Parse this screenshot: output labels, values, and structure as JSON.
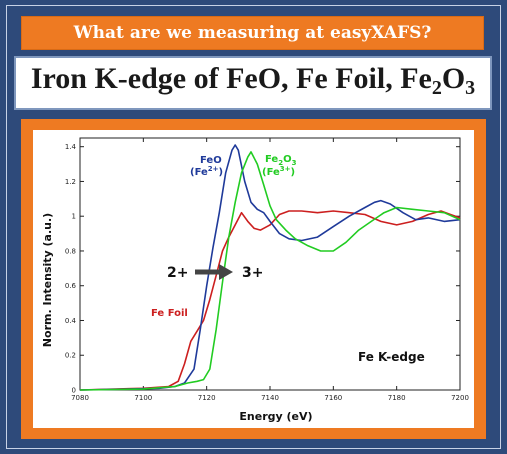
{
  "banner": {
    "text": "What are we measuring at easyXAFS?"
  },
  "title": {
    "prefix": "Iron K-edge of FeO, Fe Foil, Fe",
    "sub1": "2",
    "mid": "O",
    "sub2": "3"
  },
  "chart_data": {
    "type": "line",
    "xlabel": "Energy (eV)",
    "ylabel": "Norm. Intensity (a.u.)",
    "xlim": [
      7080,
      7200
    ],
    "ylim": [
      0,
      1.45
    ],
    "xticks": [
      "7080",
      "7100",
      "7120",
      "7140",
      "7160",
      "7180",
      "7200"
    ],
    "yticks": [
      "0",
      "0.2",
      "0.4",
      "0.6",
      "0.8",
      "1",
      "1.2",
      "1.4"
    ],
    "grid": false,
    "colors": {
      "feo": "#1f3a9a",
      "fe2o3": "#22cc22",
      "fefoil": "#cc1f1f",
      "arrow": "#444444"
    },
    "series": [
      {
        "name": "FeO",
        "values": [
          [
            7080,
            0
          ],
          [
            7095,
            0.005
          ],
          [
            7105,
            0.01
          ],
          [
            7110,
            0.02
          ],
          [
            7113,
            0.04
          ],
          [
            7116,
            0.12
          ],
          [
            7118,
            0.35
          ],
          [
            7120,
            0.6
          ],
          [
            7122,
            0.82
          ],
          [
            7124,
            1.02
          ],
          [
            7126,
            1.25
          ],
          [
            7128,
            1.38
          ],
          [
            7129,
            1.41
          ],
          [
            7130,
            1.38
          ],
          [
            7132,
            1.2
          ],
          [
            7134,
            1.08
          ],
          [
            7136,
            1.04
          ],
          [
            7138,
            1.02
          ],
          [
            7140,
            0.97
          ],
          [
            7143,
            0.9
          ],
          [
            7146,
            0.87
          ],
          [
            7150,
            0.86
          ],
          [
            7155,
            0.88
          ],
          [
            7160,
            0.94
          ],
          [
            7165,
            1.0
          ],
          [
            7170,
            1.05
          ],
          [
            7173,
            1.08
          ],
          [
            7175,
            1.09
          ],
          [
            7178,
            1.07
          ],
          [
            7182,
            1.02
          ],
          [
            7186,
            0.98
          ],
          [
            7190,
            0.99
          ],
          [
            7195,
            0.97
          ],
          [
            7200,
            0.98
          ]
        ]
      },
      {
        "name": "Fe2O3",
        "values": [
          [
            7080,
            0
          ],
          [
            7100,
            0.005
          ],
          [
            7110,
            0.02
          ],
          [
            7114,
            0.04
          ],
          [
            7117,
            0.05
          ],
          [
            7119,
            0.06
          ],
          [
            7121,
            0.12
          ],
          [
            7123,
            0.35
          ],
          [
            7125,
            0.62
          ],
          [
            7127,
            0.88
          ],
          [
            7129,
            1.08
          ],
          [
            7131,
            1.25
          ],
          [
            7133,
            1.34
          ],
          [
            7134,
            1.37
          ],
          [
            7136,
            1.3
          ],
          [
            7138,
            1.18
          ],
          [
            7140,
            1.06
          ],
          [
            7142,
            0.98
          ],
          [
            7145,
            0.92
          ],
          [
            7148,
            0.87
          ],
          [
            7152,
            0.83
          ],
          [
            7156,
            0.8
          ],
          [
            7160,
            0.8
          ],
          [
            7164,
            0.85
          ],
          [
            7168,
            0.92
          ],
          [
            7172,
            0.97
          ],
          [
            7176,
            1.02
          ],
          [
            7180,
            1.05
          ],
          [
            7185,
            1.04
          ],
          [
            7190,
            1.03
          ],
          [
            7195,
            1.02
          ],
          [
            7200,
            0.98
          ]
        ]
      },
      {
        "name": "Fe Foil",
        "values": [
          [
            7080,
            0
          ],
          [
            7100,
            0.01
          ],
          [
            7108,
            0.02
          ],
          [
            7111,
            0.05
          ],
          [
            7113,
            0.15
          ],
          [
            7115,
            0.28
          ],
          [
            7117,
            0.34
          ],
          [
            7119,
            0.4
          ],
          [
            7121,
            0.52
          ],
          [
            7123,
            0.66
          ],
          [
            7125,
            0.8
          ],
          [
            7127,
            0.88
          ],
          [
            7129,
            0.95
          ],
          [
            7131,
            1.02
          ],
          [
            7133,
            0.97
          ],
          [
            7135,
            0.93
          ],
          [
            7137,
            0.92
          ],
          [
            7140,
            0.95
          ],
          [
            7143,
            1.01
          ],
          [
            7146,
            1.03
          ],
          [
            7150,
            1.03
          ],
          [
            7155,
            1.02
          ],
          [
            7160,
            1.03
          ],
          [
            7165,
            1.02
          ],
          [
            7170,
            1.01
          ],
          [
            7175,
            0.97
          ],
          [
            7180,
            0.95
          ],
          [
            7185,
            0.97
          ],
          [
            7190,
            1.01
          ],
          [
            7194,
            1.03
          ],
          [
            7197,
            1.01
          ],
          [
            7200,
            0.99
          ]
        ]
      }
    ],
    "annotations": {
      "feo": "FeO",
      "feo_ox": "(Fe",
      "feo_sup": "2+",
      "fe2o3_prefix": "Fe",
      "fe2o3_sub1": "2",
      "fe2o3_mid": "O",
      "fe2o3_sub2": "3",
      "fe2o3_ox": "(Fe",
      "fe2o3_sup": "3+",
      "close_paren": ")",
      "fefoil": "Fe Foil",
      "arrow_from": "2+",
      "arrow_to": "3+",
      "edge": "Fe K-edge"
    }
  }
}
